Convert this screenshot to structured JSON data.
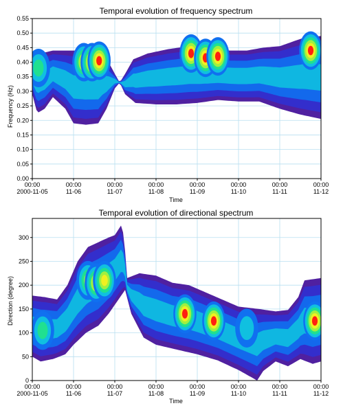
{
  "chart_data": [
    {
      "type": "heatmap",
      "title": "Temporal evolution of frequency spectrum",
      "xlabel": "Time",
      "ylabel": "Frequency (Hz)",
      "ylim": [
        0.0,
        0.55
      ],
      "yticks": [
        0.0,
        0.05,
        0.1,
        0.15,
        0.2,
        0.25,
        0.3,
        0.35,
        0.4,
        0.45,
        0.5,
        0.55
      ],
      "ytick_labels": [
        "0.00",
        "0.05",
        "0.10",
        "0.15",
        "0.20",
        "0.25",
        "0.30",
        "0.35",
        "0.40",
        "0.45",
        "0.50",
        "0.55"
      ],
      "xticks": [
        {
          "line1": "00:00",
          "line2": "2000-11-05"
        },
        {
          "line1": "00:00",
          "line2": "11-06"
        },
        {
          "line1": "00:00",
          "line2": "11-07"
        },
        {
          "line1": "00:00",
          "line2": "11-08"
        },
        {
          "line1": "00:00",
          "line2": "11-09"
        },
        {
          "line1": "00:00",
          "line2": "11-10"
        },
        {
          "line1": "00:00",
          "line2": "11-11"
        },
        {
          "line1": "00:00",
          "line2": "11-12"
        }
      ],
      "x_range_days": [
        0,
        7
      ],
      "grid": true,
      "colormap": [
        "#5020a0",
        "#3030d0",
        "#1070f0",
        "#10c0e0",
        "#20e090",
        "#a0f040",
        "#f0f020",
        "#ff2010"
      ],
      "envelope": {
        "upper": [
          [
            0.0,
            0.405
          ],
          [
            0.2,
            0.43
          ],
          [
            0.5,
            0.44
          ],
          [
            0.9,
            0.44
          ],
          [
            1.3,
            0.44
          ],
          [
            1.7,
            0.43
          ],
          [
            1.85,
            0.4
          ],
          [
            2.0,
            0.36
          ],
          [
            2.12,
            0.33
          ],
          [
            2.25,
            0.36
          ],
          [
            2.45,
            0.41
          ],
          [
            2.8,
            0.43
          ],
          [
            3.3,
            0.445
          ],
          [
            3.8,
            0.455
          ],
          [
            4.3,
            0.445
          ],
          [
            4.8,
            0.44
          ],
          [
            5.2,
            0.44
          ],
          [
            5.6,
            0.45
          ],
          [
            6.0,
            0.455
          ],
          [
            6.3,
            0.47
          ],
          [
            6.6,
            0.485
          ],
          [
            7.0,
            0.49
          ]
        ],
        "lower": [
          [
            0.0,
            0.29
          ],
          [
            0.12,
            0.225
          ],
          [
            0.3,
            0.24
          ],
          [
            0.5,
            0.28
          ],
          [
            0.8,
            0.24
          ],
          [
            1.0,
            0.19
          ],
          [
            1.3,
            0.185
          ],
          [
            1.6,
            0.19
          ],
          [
            1.8,
            0.24
          ],
          [
            2.0,
            0.31
          ],
          [
            2.12,
            0.33
          ],
          [
            2.25,
            0.29
          ],
          [
            2.5,
            0.26
          ],
          [
            3.0,
            0.255
          ],
          [
            3.5,
            0.255
          ],
          [
            4.0,
            0.26
          ],
          [
            4.5,
            0.27
          ],
          [
            5.0,
            0.265
          ],
          [
            5.5,
            0.265
          ],
          [
            6.0,
            0.24
          ],
          [
            6.5,
            0.22
          ],
          [
            7.0,
            0.205
          ]
        ]
      },
      "peaks": [
        {
          "t": 0.15,
          "v": 0.38,
          "level": 4
        },
        {
          "t": 1.25,
          "v": 0.4,
          "level": 6
        },
        {
          "t": 1.45,
          "v": 0.4,
          "level": 7
        },
        {
          "t": 1.62,
          "v": 0.405,
          "level": 7
        },
        {
          "t": 3.85,
          "v": 0.43,
          "level": 7
        },
        {
          "t": 4.2,
          "v": 0.415,
          "level": 7
        },
        {
          "t": 4.5,
          "v": 0.42,
          "level": 7
        },
        {
          "t": 6.75,
          "v": 0.44,
          "level": 7
        }
      ]
    },
    {
      "type": "heatmap",
      "title": "Temporal evolution of directional spectrum",
      "xlabel": "Time",
      "ylabel": "Direction (degree)",
      "ylim": [
        0,
        340
      ],
      "yticks": [
        0,
        50,
        100,
        150,
        200,
        250,
        300
      ],
      "ytick_labels": [
        "0",
        "50",
        "100",
        "150",
        "200",
        "250",
        "300"
      ],
      "xticks": [
        {
          "line1": "00:00",
          "line2": "2000-11-05"
        },
        {
          "line1": "00:00",
          "line2": "11-06"
        },
        {
          "line1": "00:00",
          "line2": "11-07"
        },
        {
          "line1": "00:00",
          "line2": "11-08"
        },
        {
          "line1": "00:00",
          "line2": "11-09"
        },
        {
          "line1": "00:00",
          "line2": "11-10"
        },
        {
          "line1": "00:00",
          "line2": "11-11"
        },
        {
          "line1": "00:00",
          "line2": "11-12"
        }
      ],
      "x_range_days": [
        0,
        7
      ],
      "grid": true,
      "colormap": [
        "#5020a0",
        "#3030d0",
        "#1070f0",
        "#10c0e0",
        "#20e090",
        "#a0f040",
        "#f0f020",
        "#ff2010"
      ],
      "envelope": {
        "upper": [
          [
            0.0,
            178
          ],
          [
            0.3,
            175
          ],
          [
            0.6,
            170
          ],
          [
            0.85,
            200
          ],
          [
            1.1,
            250
          ],
          [
            1.35,
            280
          ],
          [
            1.6,
            290
          ],
          [
            1.85,
            300
          ],
          [
            2.0,
            305
          ],
          [
            2.15,
            325
          ],
          [
            2.22,
            305
          ],
          [
            2.3,
            215
          ],
          [
            2.6,
            225
          ],
          [
            3.0,
            220
          ],
          [
            3.4,
            205
          ],
          [
            3.8,
            200
          ],
          [
            4.2,
            185
          ],
          [
            4.6,
            170
          ],
          [
            5.0,
            155
          ],
          [
            5.5,
            150
          ],
          [
            5.9,
            145
          ],
          [
            6.2,
            148
          ],
          [
            6.45,
            175
          ],
          [
            6.6,
            210
          ],
          [
            7.0,
            215
          ]
        ],
        "lower": [
          [
            0.0,
            50
          ],
          [
            0.2,
            40
          ],
          [
            0.5,
            45
          ],
          [
            0.8,
            55
          ],
          [
            1.0,
            75
          ],
          [
            1.3,
            100
          ],
          [
            1.6,
            115
          ],
          [
            1.85,
            140
          ],
          [
            2.05,
            165
          ],
          [
            2.25,
            190
          ],
          [
            2.4,
            140
          ],
          [
            2.7,
            90
          ],
          [
            3.0,
            75
          ],
          [
            3.5,
            65
          ],
          [
            4.0,
            55
          ],
          [
            4.5,
            42
          ],
          [
            5.0,
            22
          ],
          [
            5.35,
            5
          ],
          [
            5.45,
            0
          ],
          [
            5.6,
            20
          ],
          [
            5.9,
            40
          ],
          [
            6.2,
            30
          ],
          [
            6.5,
            45
          ],
          [
            6.8,
            35
          ],
          [
            7.0,
            40
          ]
        ]
      },
      "peaks": [
        {
          "t": 0.25,
          "v": 105,
          "level": 4
        },
        {
          "t": 1.35,
          "v": 210,
          "level": 5
        },
        {
          "t": 1.55,
          "v": 205,
          "level": 6
        },
        {
          "t": 1.75,
          "v": 210,
          "level": 6
        },
        {
          "t": 3.7,
          "v": 140,
          "level": 7
        },
        {
          "t": 4.4,
          "v": 125,
          "level": 7
        },
        {
          "t": 5.2,
          "v": 110,
          "level": 3
        },
        {
          "t": 6.85,
          "v": 125,
          "level": 7
        }
      ]
    }
  ]
}
